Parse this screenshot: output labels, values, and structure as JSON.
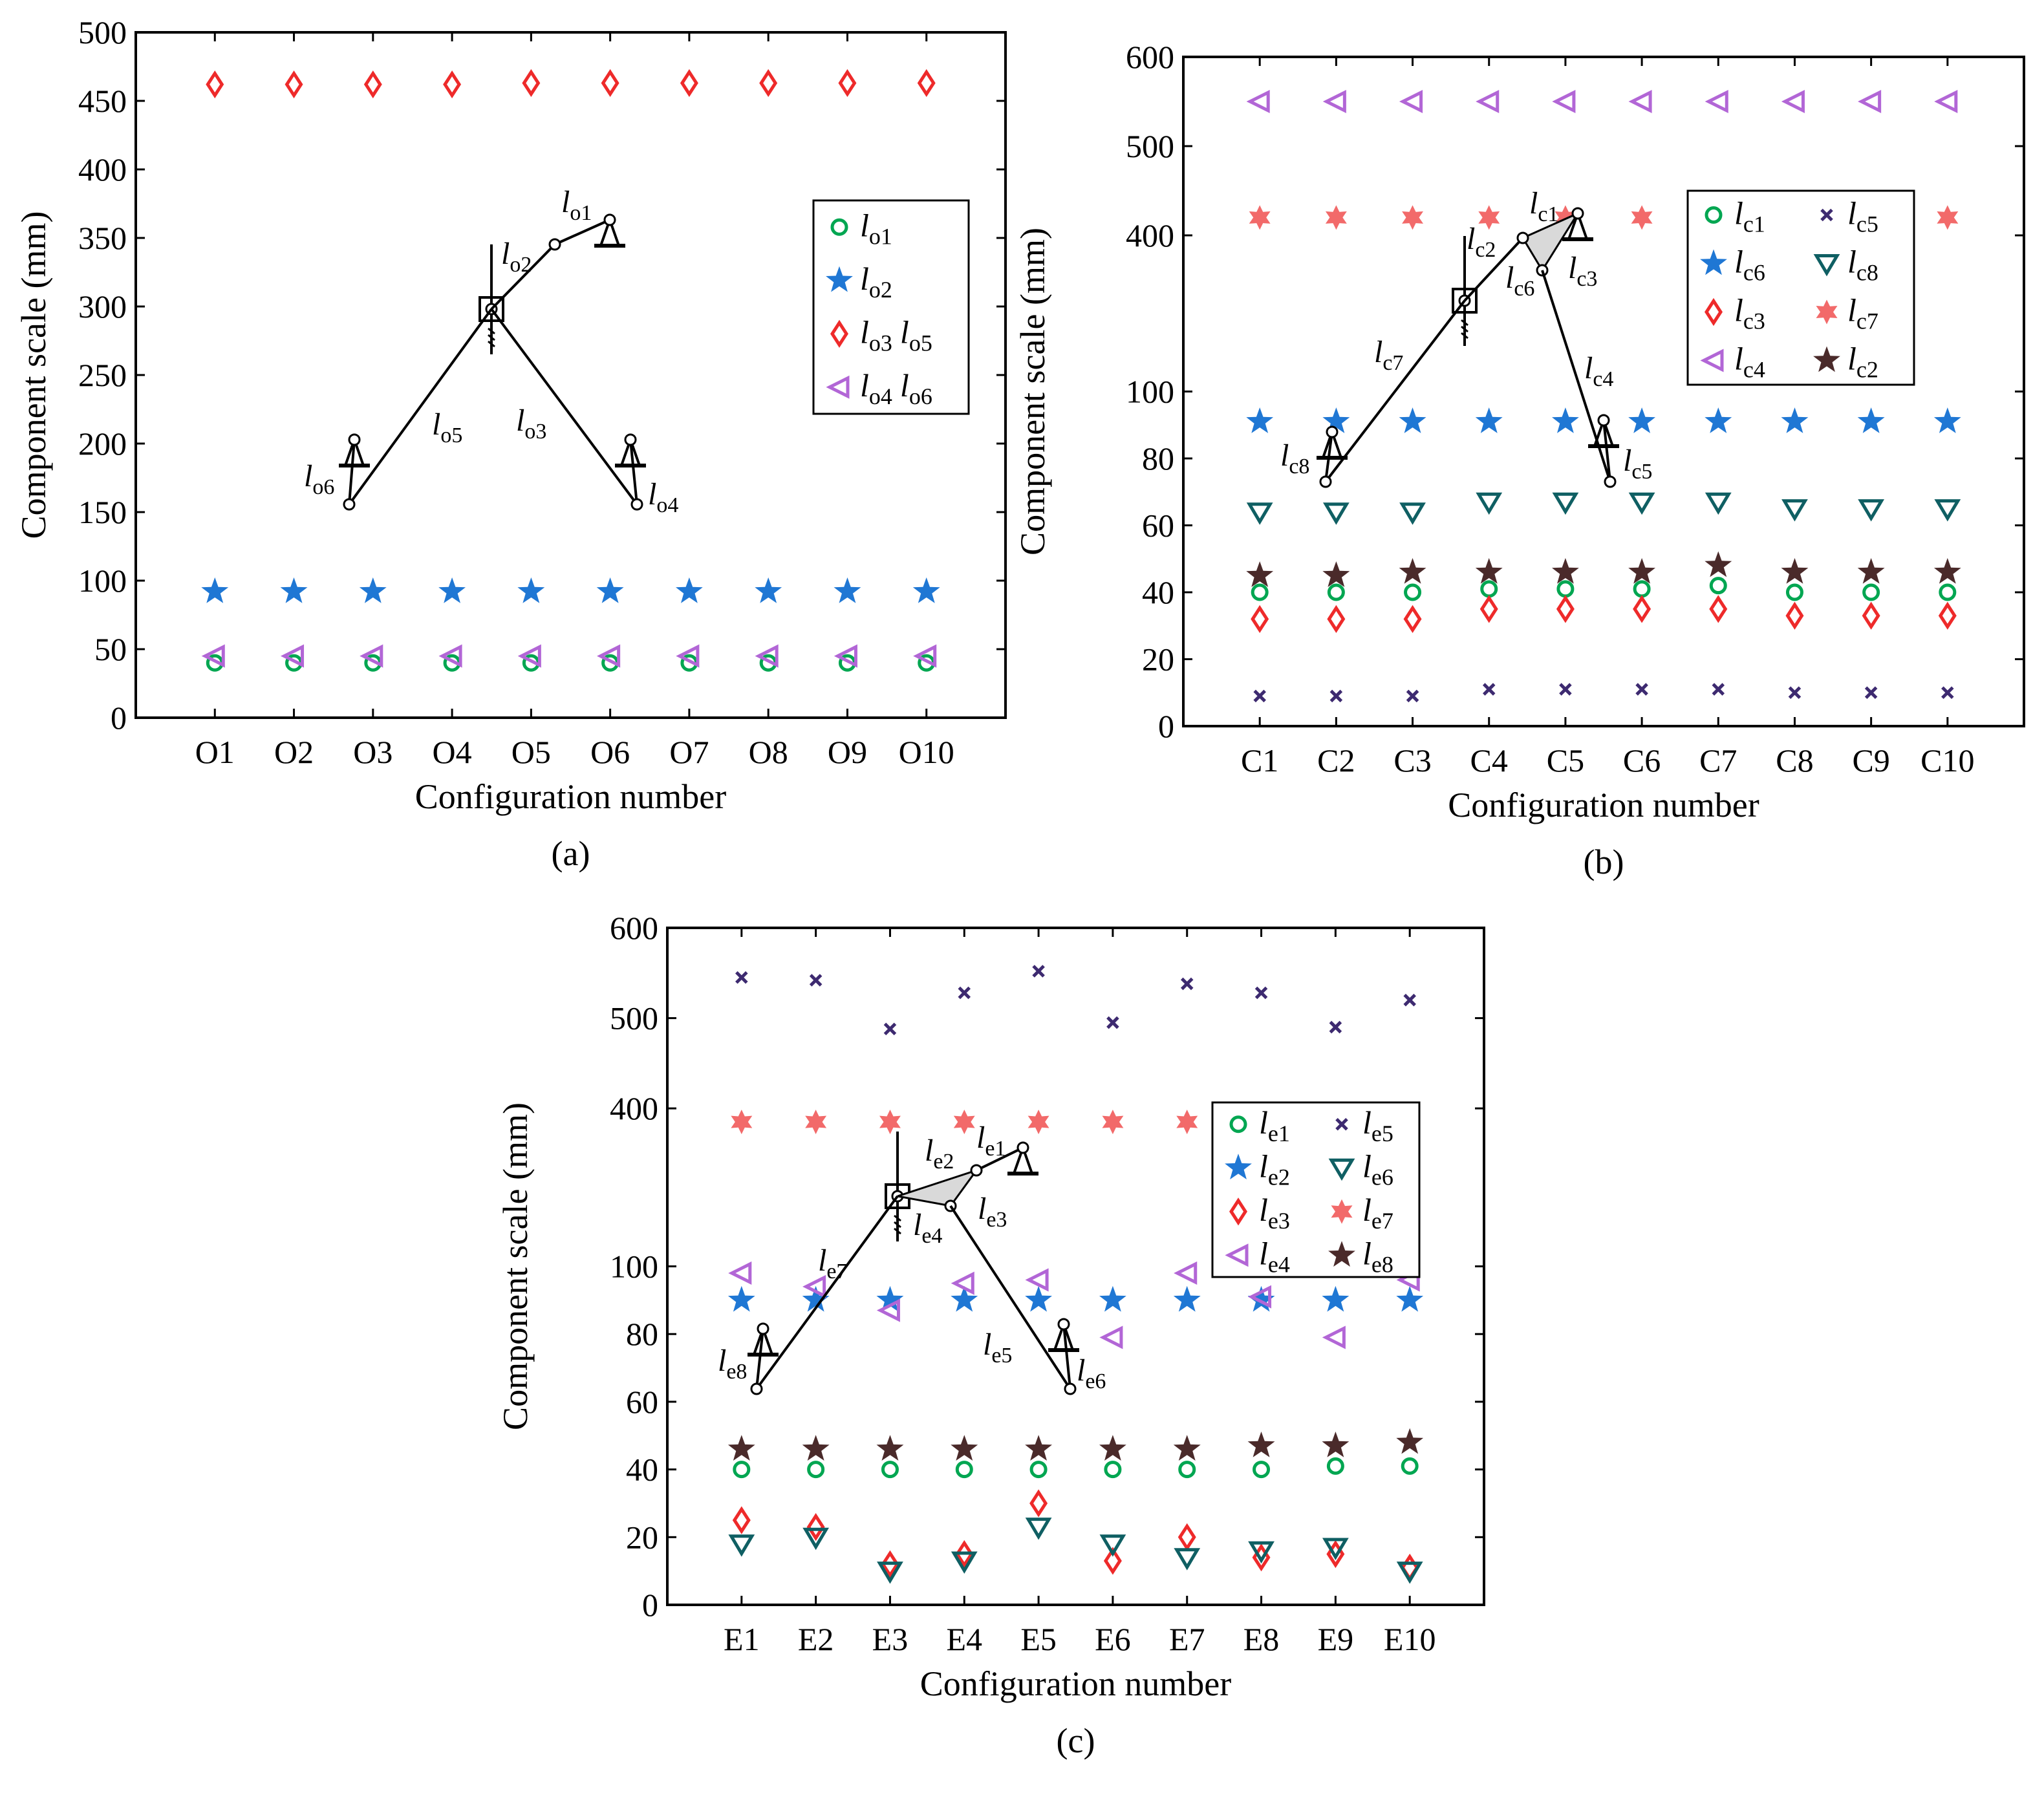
{
  "colors": {
    "green": "#00a651",
    "blue": "#1f77d4",
    "red": "#ee2a2a",
    "purple": "#b266d6",
    "darkpurple": "#3d2a70",
    "teal": "#0f5f63",
    "salmon": "#f26a6a",
    "brown": "#4a2a2a"
  },
  "chart_data": [
    {
      "id": "a",
      "type": "scatter",
      "panel_label": "(a)",
      "xlabel": "Configuration number",
      "ylabel": "Component scale (mm)",
      "y_scale": "linear",
      "ylim": [
        0,
        500
      ],
      "yticks": [
        0,
        50,
        100,
        150,
        200,
        250,
        300,
        350,
        400,
        450,
        500
      ],
      "ytick_labels": [
        "0",
        "50",
        "100",
        "150",
        "200",
        "250",
        "300",
        "350",
        "400",
        "450",
        "500"
      ],
      "categories": [
        "O1",
        "O2",
        "O3",
        "O4",
        "O5",
        "O6",
        "O7",
        "O8",
        "O9",
        "O10"
      ],
      "legend": [
        {
          "label": "l",
          "sub": "o1",
          "marker": "circle",
          "color": "green"
        },
        {
          "label": "l",
          "sub": "o2",
          "marker": "star5",
          "color": "blue"
        },
        {
          "label": "l",
          "sub": "o3",
          "label2": "l",
          "sub2": "o5",
          "marker": "diamond",
          "color": "red"
        },
        {
          "label": "l",
          "sub": "o4",
          "label2": "l",
          "sub2": "o6",
          "marker": "triangle-left",
          "color": "purple"
        }
      ],
      "series": [
        {
          "name": "lo1",
          "marker": "circle",
          "color": "green",
          "values": [
            40,
            40,
            40,
            40,
            40,
            40,
            40,
            40,
            40,
            40
          ]
        },
        {
          "name": "lo2",
          "marker": "star5",
          "color": "blue",
          "values": [
            92,
            92,
            92,
            92,
            92,
            92,
            92,
            92,
            92,
            92
          ]
        },
        {
          "name": "lo3 lo5",
          "marker": "diamond",
          "color": "red",
          "values": [
            462,
            462,
            462,
            462,
            463,
            463,
            463,
            463,
            463,
            463
          ]
        },
        {
          "name": "lo4 lo6",
          "marker": "triangle-left",
          "color": "purple",
          "values": [
            45,
            45,
            45,
            45,
            45,
            45,
            45,
            45,
            45,
            45
          ]
        }
      ],
      "diagram_labels": [
        {
          "l": "l",
          "sub": "o1"
        },
        {
          "l": "l",
          "sub": "o2"
        },
        {
          "l": "l",
          "sub": "o5"
        },
        {
          "l": "l",
          "sub": "o3"
        },
        {
          "l": "l",
          "sub": "o6"
        },
        {
          "l": "l",
          "sub": "o4"
        }
      ]
    },
    {
      "id": "b",
      "type": "scatter",
      "panel_label": "(b)",
      "xlabel": "Configuration number",
      "ylabel": "Component scale (mm)",
      "y_scale": "broken: linear 0-100 in lower part, compressed 100-600 above",
      "ylim": [
        0,
        600
      ],
      "yticks": [
        0,
        20,
        40,
        60,
        80,
        100,
        400,
        500,
        600
      ],
      "ytick_labels": [
        "0",
        "20",
        "40",
        "60",
        "80",
        "100",
        "400",
        "500",
        "600"
      ],
      "categories": [
        "C1",
        "C2",
        "C3",
        "C4",
        "C5",
        "C6",
        "C7",
        "C8",
        "C9",
        "C10"
      ],
      "legend": [
        {
          "label": "l",
          "sub": "c1",
          "marker": "circle",
          "color": "green"
        },
        {
          "label": "l",
          "sub": "c5",
          "marker": "x",
          "color": "darkpurple"
        },
        {
          "label": "l",
          "sub": "c6",
          "marker": "star5",
          "color": "blue"
        },
        {
          "label": "l",
          "sub": "c8",
          "marker": "triangle-down",
          "color": "teal"
        },
        {
          "label": "l",
          "sub": "c3",
          "marker": "diamond",
          "color": "red"
        },
        {
          "label": "l",
          "sub": "c7",
          "marker": "star6",
          "color": "salmon"
        },
        {
          "label": "l",
          "sub": "c4",
          "marker": "triangle-left",
          "color": "purple"
        },
        {
          "label": "l",
          "sub": "c2",
          "marker": "star5",
          "color": "brown"
        }
      ],
      "series": [
        {
          "name": "lc1",
          "marker": "circle",
          "color": "green",
          "values": [
            40,
            40,
            40,
            41,
            41,
            41,
            42,
            40,
            40,
            40
          ]
        },
        {
          "name": "lc6",
          "marker": "star5",
          "color": "blue",
          "values": [
            91,
            91,
            91,
            91,
            91,
            91,
            91,
            91,
            91,
            91
          ]
        },
        {
          "name": "lc3",
          "marker": "diamond",
          "color": "red",
          "values": [
            32,
            32,
            32,
            35,
            35,
            35,
            35,
            33,
            33,
            33
          ]
        },
        {
          "name": "lc4",
          "marker": "triangle-left",
          "color": "purple",
          "values": [
            550,
            550,
            550,
            550,
            550,
            550,
            550,
            550,
            550,
            550
          ]
        },
        {
          "name": "lc5",
          "marker": "x",
          "color": "darkpurple",
          "values": [
            9,
            9,
            9,
            11,
            11,
            11,
            11,
            10,
            10,
            10
          ]
        },
        {
          "name": "lc8",
          "marker": "triangle-down",
          "color": "teal",
          "values": [
            64,
            64,
            64,
            67,
            67,
            67,
            67,
            65,
            65,
            65
          ]
        },
        {
          "name": "lc7",
          "marker": "star6",
          "color": "salmon",
          "values": [
            420,
            420,
            420,
            420,
            420,
            420,
            422,
            420,
            420,
            420
          ]
        },
        {
          "name": "lc2",
          "marker": "star5",
          "color": "brown",
          "values": [
            45,
            45,
            46,
            46,
            46,
            46,
            48,
            46,
            46,
            46
          ]
        }
      ],
      "diagram_labels": [
        {
          "l": "l",
          "sub": "c1"
        },
        {
          "l": "l",
          "sub": "c2"
        },
        {
          "l": "l",
          "sub": "c6"
        },
        {
          "l": "l",
          "sub": "c3"
        },
        {
          "l": "l",
          "sub": "c7"
        },
        {
          "l": "l",
          "sub": "c4"
        },
        {
          "l": "l",
          "sub": "c8"
        },
        {
          "l": "l",
          "sub": "c5"
        }
      ]
    },
    {
      "id": "c",
      "type": "scatter",
      "panel_label": "(c)",
      "xlabel": "Configuration number",
      "ylabel": "Component scale (mm)",
      "y_scale": "broken: linear 0-100 in lower part, compressed 100-600 above",
      "ylim": [
        0,
        600
      ],
      "yticks": [
        0,
        20,
        40,
        60,
        80,
        100,
        400,
        500,
        600
      ],
      "ytick_labels": [
        "0",
        "20",
        "40",
        "60",
        "80",
        "100",
        "400",
        "500",
        "600"
      ],
      "categories": [
        "E1",
        "E2",
        "E3",
        "E4",
        "E5",
        "E6",
        "E7",
        "E8",
        "E9",
        "E10"
      ],
      "legend": [
        {
          "label": "l",
          "sub": "e1",
          "marker": "circle",
          "color": "green"
        },
        {
          "label": "l",
          "sub": "e5",
          "marker": "x",
          "color": "darkpurple"
        },
        {
          "label": "l",
          "sub": "e2",
          "marker": "star5",
          "color": "blue"
        },
        {
          "label": "l",
          "sub": "e6",
          "marker": "triangle-down",
          "color": "teal"
        },
        {
          "label": "l",
          "sub": "e3",
          "marker": "diamond",
          "color": "red"
        },
        {
          "label": "l",
          "sub": "e7",
          "marker": "star6",
          "color": "salmon"
        },
        {
          "label": "l",
          "sub": "e4",
          "marker": "triangle-left",
          "color": "purple"
        },
        {
          "label": "l",
          "sub": "e8",
          "marker": "star5",
          "color": "brown"
        }
      ],
      "series": [
        {
          "name": "le1",
          "marker": "circle",
          "color": "green",
          "values": [
            40,
            40,
            40,
            40,
            40,
            40,
            40,
            40,
            41,
            41
          ]
        },
        {
          "name": "le2",
          "marker": "star5",
          "color": "blue",
          "values": [
            90,
            90,
            90,
            90,
            90,
            90,
            90,
            90,
            90,
            90
          ]
        },
        {
          "name": "le3",
          "marker": "diamond",
          "color": "red",
          "values": [
            25,
            23,
            12,
            15,
            30,
            13,
            20,
            14,
            15,
            11
          ]
        },
        {
          "name": "le4",
          "marker": "triangle-left",
          "color": "purple",
          "values": [
            98,
            94,
            87,
            95,
            96,
            79,
            98,
            91,
            79,
            96
          ]
        },
        {
          "name": "le5",
          "marker": "x",
          "color": "darkpurple",
          "values": [
            545,
            542,
            488,
            528,
            552,
            495,
            538,
            528,
            490,
            520
          ]
        },
        {
          "name": "le6",
          "marker": "triangle-down",
          "color": "teal",
          "values": [
            18,
            20,
            10,
            13,
            23,
            18,
            14,
            16,
            17,
            10
          ]
        },
        {
          "name": "le7",
          "marker": "star6",
          "color": "salmon",
          "values": [
            385,
            385,
            385,
            385,
            385,
            385,
            385,
            385,
            385,
            385
          ]
        },
        {
          "name": "le8",
          "marker": "star5",
          "color": "brown",
          "values": [
            46,
            46,
            46,
            46,
            46,
            46,
            46,
            47,
            47,
            48
          ]
        }
      ],
      "diagram_labels": [
        {
          "l": "l",
          "sub": "e1"
        },
        {
          "l": "l",
          "sub": "e2"
        },
        {
          "l": "l",
          "sub": "e3"
        },
        {
          "l": "l",
          "sub": "e4"
        },
        {
          "l": "l",
          "sub": "e7"
        },
        {
          "l": "l",
          "sub": "e8"
        },
        {
          "l": "l",
          "sub": "e5"
        },
        {
          "l": "l",
          "sub": "e6"
        }
      ]
    }
  ]
}
